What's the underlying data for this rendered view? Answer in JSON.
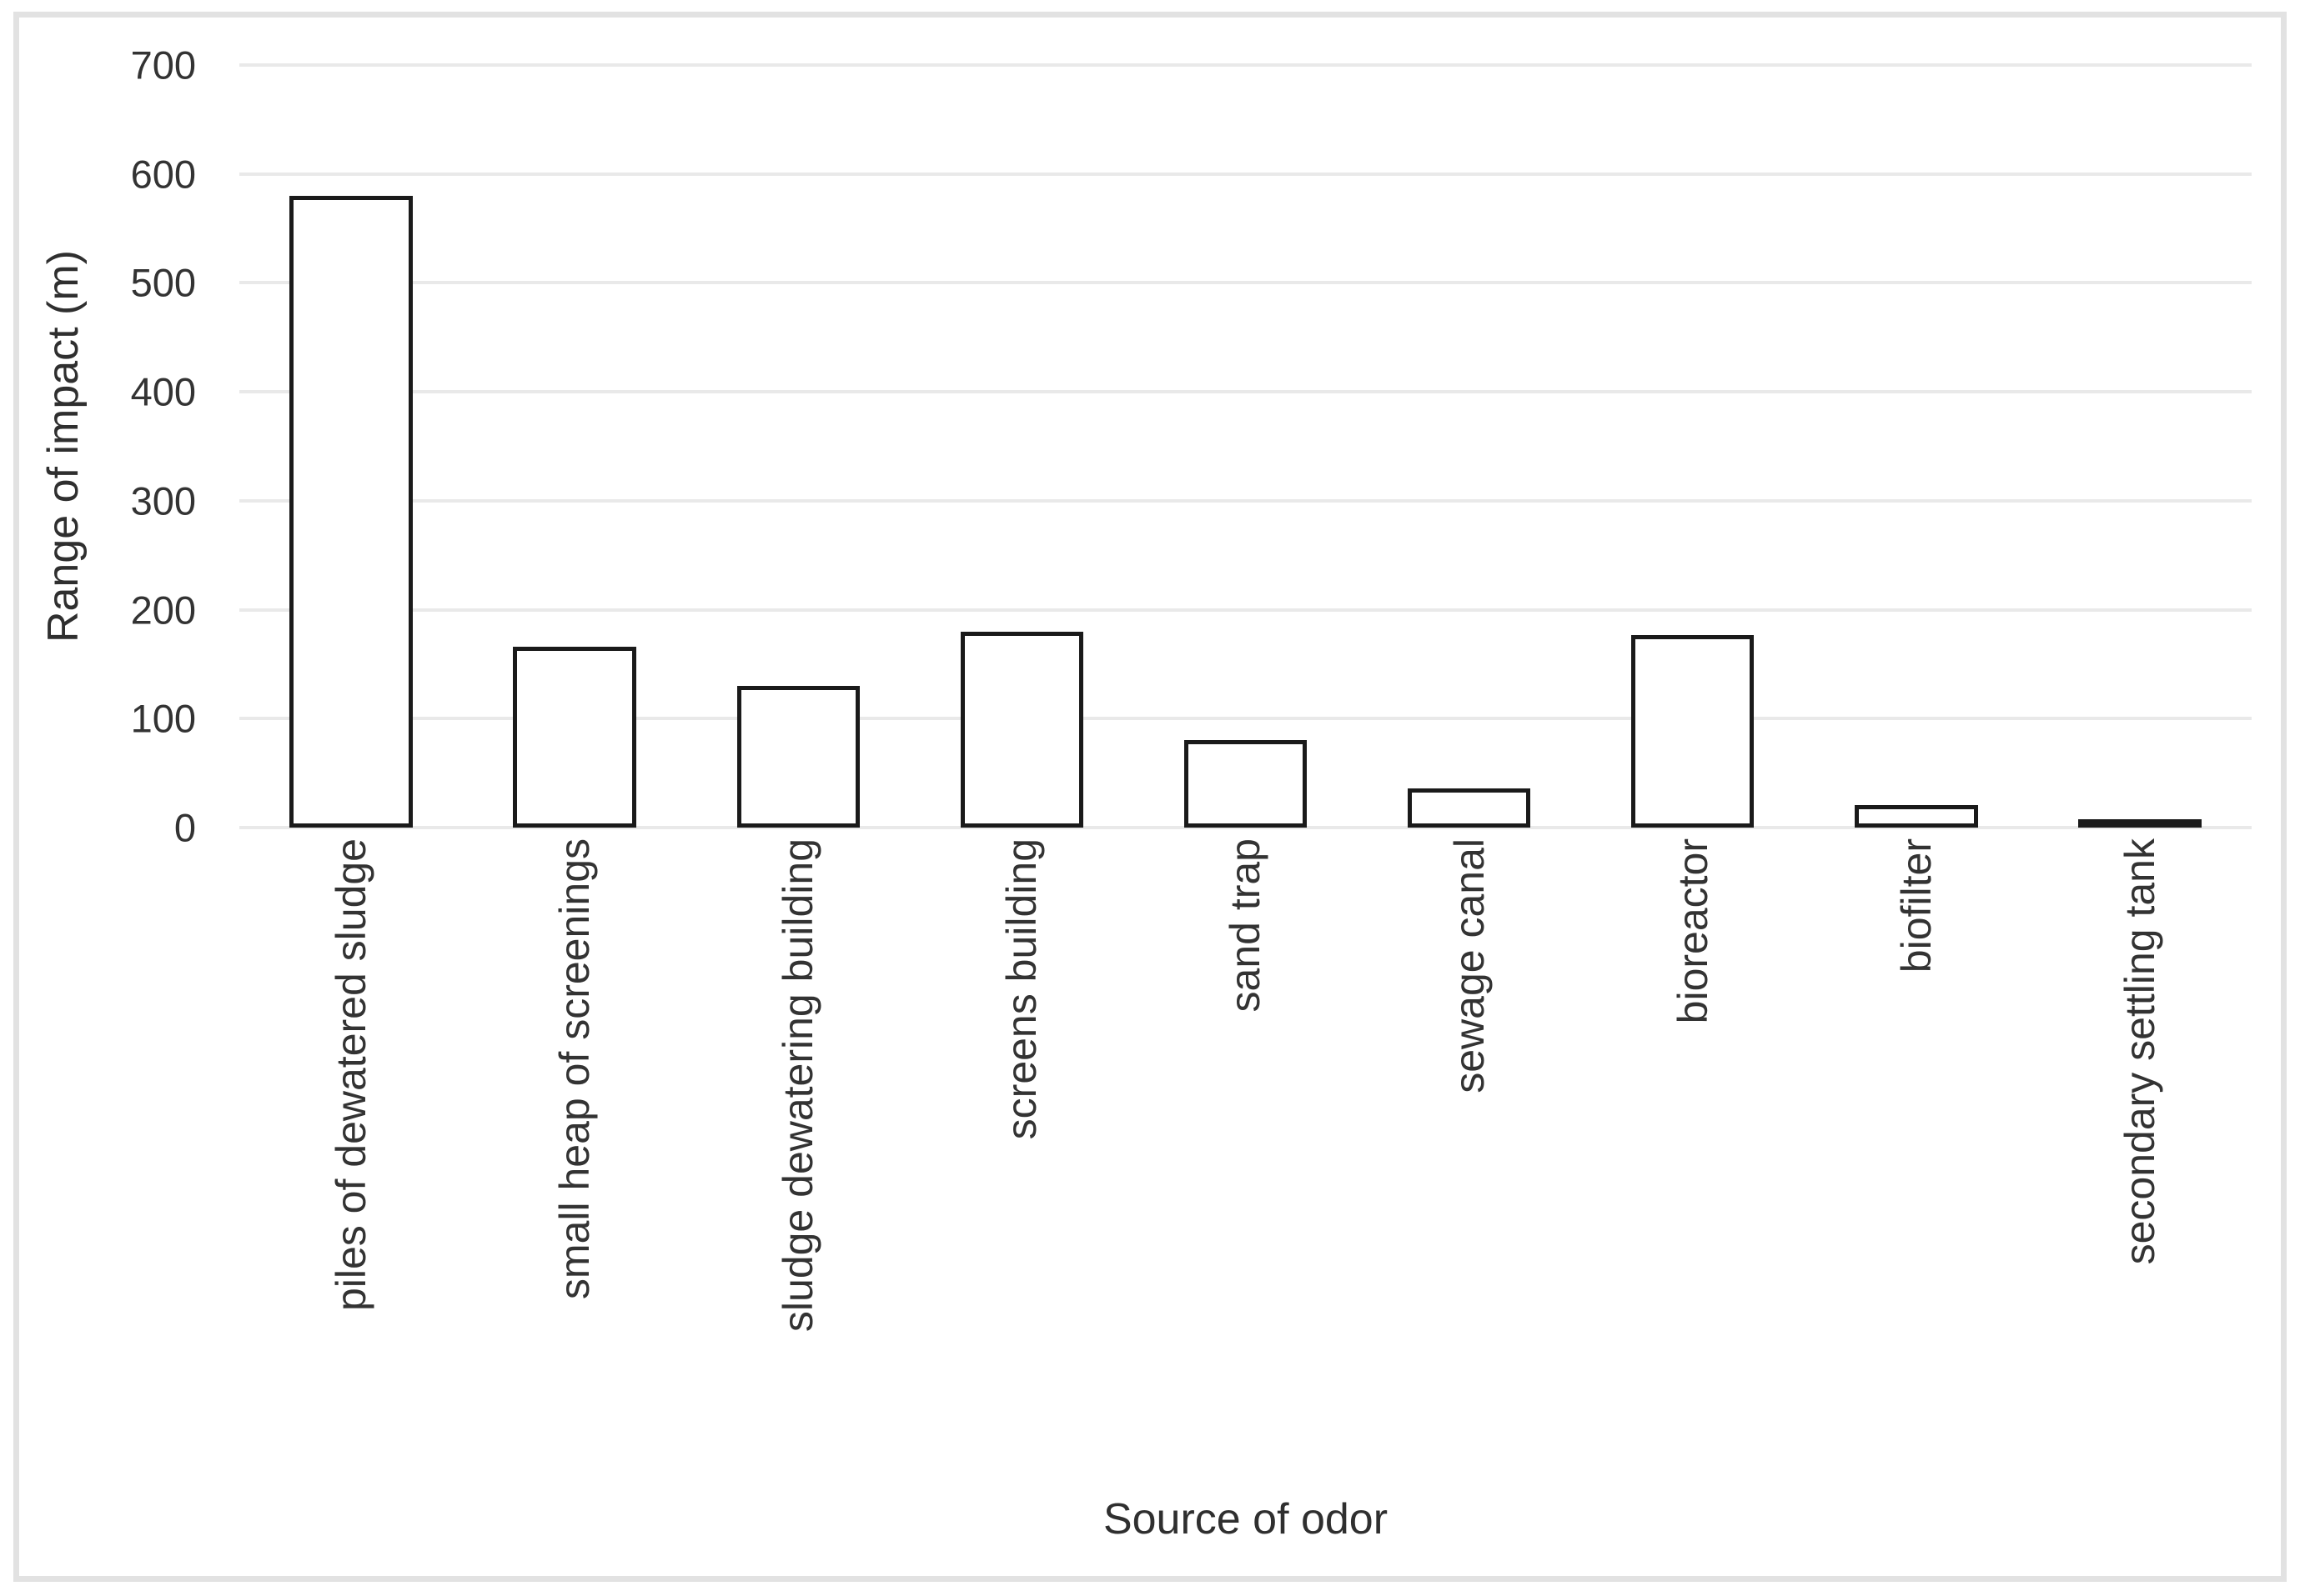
{
  "chart_data": {
    "type": "bar",
    "title": "",
    "categories": [
      "piles of dewatered sludge",
      "small heap of screenings",
      "sludge dewatering building",
      "screens building",
      "sand trap",
      "sewage canal",
      "bioreactor",
      "biofilter",
      "secondary settling tank"
    ],
    "values": [
      580,
      166,
      130,
      180,
      80,
      36,
      177,
      21,
      4
    ],
    "xlabel": "Source of odor",
    "ylabel": "Range of impact (m)",
    "ylim": [
      0,
      700
    ],
    "yticks": [
      0,
      100,
      200,
      300,
      400,
      500,
      600,
      700
    ],
    "grid": "horizontal",
    "legend": "none",
    "bar_fill_color": "#ffffff",
    "bar_border_color": "#1a1a1a",
    "gridline_color": "#e9e9e9",
    "axis_text_color": "#333333",
    "frame_border_color": "#e2e2e2"
  }
}
